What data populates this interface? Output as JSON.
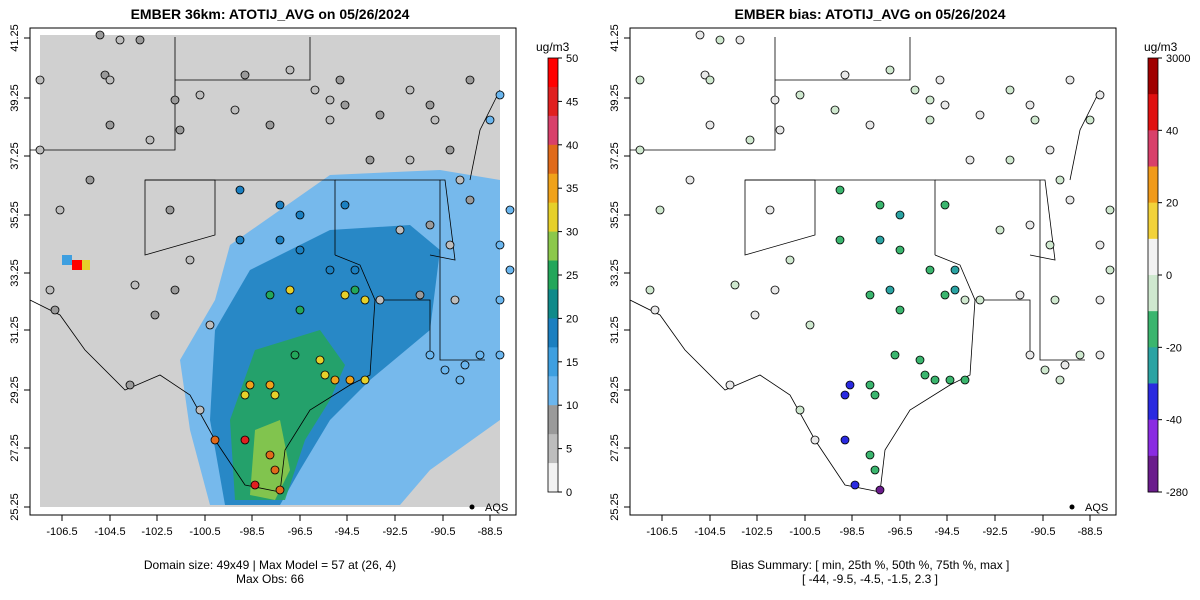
{
  "left_panel": {
    "title": "EMBER 36km: ATOTIJ_AVG on 05/26/2024",
    "unit": "ug/m3",
    "colorbar_ticks": [
      "50",
      "45",
      "40",
      "35",
      "30",
      "25",
      "20",
      "15",
      "10",
      "5",
      "0"
    ],
    "legend_label": "AQS",
    "footer_line1": "Domain size: 49x49 | Max Model = 57 at (26, 4)",
    "footer_line2": "Max Obs: 66"
  },
  "right_panel": {
    "title": "EMBER bias: ATOTIJ_AVG on 05/26/2024",
    "unit": "ug/m3",
    "colorbar_ticks": [
      "3000",
      "40",
      "20",
      "0",
      "-20",
      "-40",
      "-280"
    ],
    "legend_label": "AQS",
    "footer_line1": "Bias Summary: [ min, 25th %, 50th %, 75th %, max ]",
    "footer_line2": "[ -44,   -9.5,   -4.5,   -1.5,   2.3 ]"
  },
  "axes": {
    "x_ticks": [
      "-106.5",
      "-104.5",
      "-102.5",
      "-100.5",
      "-98.5",
      "-96.5",
      "-94.5",
      "-92.5",
      "-90.5",
      "-88.5"
    ],
    "y_ticks": [
      "41.25",
      "39.25",
      "37.25",
      "35.25",
      "33.25",
      "31.25",
      "29.25",
      "27.25",
      "25.25"
    ]
  },
  "colors": {
    "model_scale": [
      "#f2f2f2",
      "#bdbdbd",
      "#9a9a9a",
      "#6bb6ee",
      "#3e9fe0",
      "#1b7fc0",
      "#0f8a8a",
      "#23a65a",
      "#8cc84b",
      "#e6d02a",
      "#f0a21a",
      "#e06a1a",
      "#d8406a",
      "#e02020",
      "#ff0000"
    ],
    "bias_scale": [
      "#6a1c8c",
      "#8a2be2",
      "#2a2ae0",
      "#2ba3a3",
      "#3bb56e",
      "#cfe8cf",
      "#f2f2f2",
      "#f2d23a",
      "#f09a1a",
      "#d8406a",
      "#e01010",
      "#a00000"
    ]
  }
}
